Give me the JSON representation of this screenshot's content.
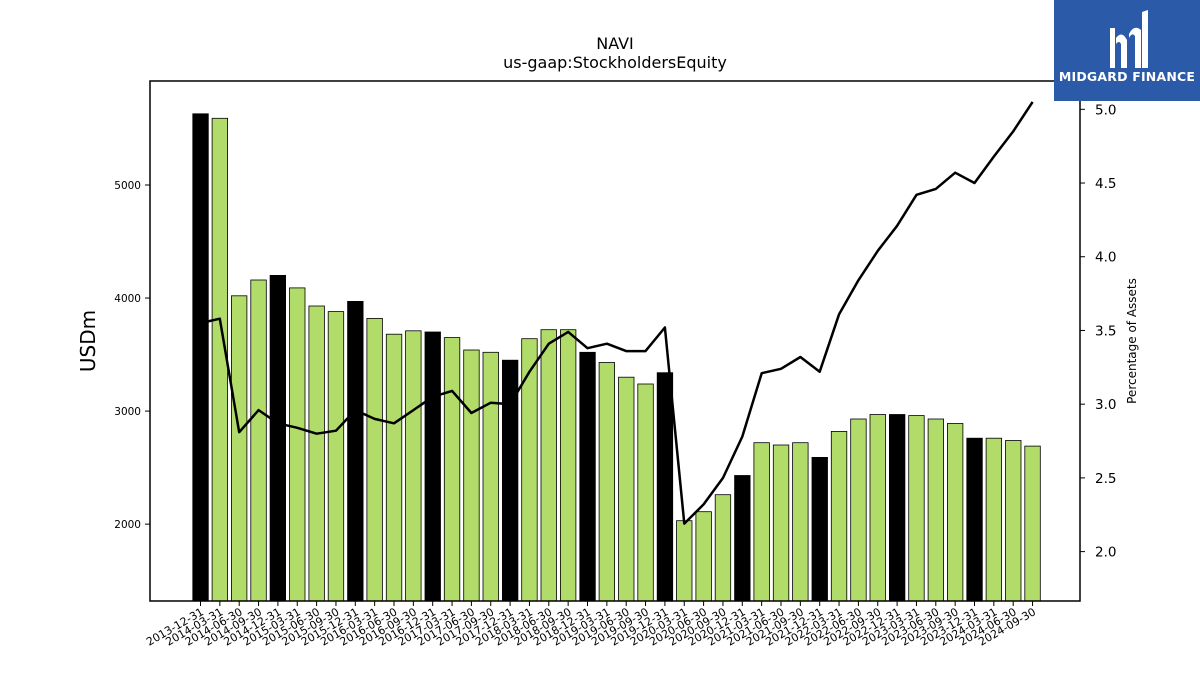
{
  "logo": {
    "text": "MIDGARD FINANCE",
    "background": "#2a5aa8"
  },
  "chart_data": {
    "type": "bar",
    "title": "NAVI",
    "subtitle": "us-gaap:StockholdersEquity",
    "ylabel": "USDm",
    "y2label": "Percentage of Assets",
    "ylim": [
      1320,
      5920
    ],
    "y2lim": [
      1.665,
      5.192
    ],
    "yticks": [
      2000,
      3000,
      4000,
      5000
    ],
    "y2ticks": [
      "2.0",
      "2.5",
      "3.0",
      "3.5",
      "4.0",
      "4.5",
      "5.0"
    ],
    "colors": {
      "annual": "#000000",
      "quarterly": "#b2dc6a",
      "line": "#000000"
    },
    "categories": [
      "2013-12-31",
      "2014-03-31",
      "2014-06-30",
      "2014-09-30",
      "2014-12-31",
      "2015-03-31",
      "2015-06-30",
      "2015-09-30",
      "2015-12-31",
      "2016-03-31",
      "2016-06-30",
      "2016-09-30",
      "2016-12-31",
      "2017-03-31",
      "2017-06-30",
      "2017-09-30",
      "2017-12-31",
      "2018-03-31",
      "2018-06-30",
      "2018-09-30",
      "2018-12-31",
      "2019-03-31",
      "2019-06-30",
      "2019-09-30",
      "2019-12-31",
      "2020-03-31",
      "2020-06-30",
      "2020-09-30",
      "2020-12-31",
      "2021-03-31",
      "2021-06-30",
      "2021-09-30",
      "2021-12-31",
      "2022-03-31",
      "2022-06-30",
      "2022-09-30",
      "2022-12-31",
      "2023-03-31",
      "2023-06-30",
      "2023-09-30",
      "2023-12-31",
      "2024-03-31",
      "2024-06-30",
      "2024-09-30"
    ],
    "series": [
      {
        "values": [
          5630,
          5590,
          4020,
          4160,
          4200,
          4090,
          3930,
          3880,
          3970,
          3820,
          3680,
          3710,
          3700,
          3650,
          3540,
          3520,
          3450,
          3640,
          3720,
          3720,
          3520,
          3430,
          3300,
          3240,
          3340,
          2030,
          2110,
          2260,
          2430,
          2720,
          2700,
          2720,
          2590,
          2820,
          2930,
          2970,
          2970,
          2960,
          2930,
          2890,
          2760,
          2760,
          2740,
          2690
        ],
        "annual_flags": [
          true,
          false,
          false,
          false,
          true,
          false,
          false,
          false,
          true,
          false,
          false,
          false,
          true,
          false,
          false,
          false,
          true,
          false,
          false,
          false,
          true,
          false,
          false,
          false,
          true,
          false,
          false,
          false,
          true,
          false,
          false,
          false,
          true,
          false,
          false,
          false,
          true,
          false,
          false,
          false,
          true,
          false,
          false,
          false
        ]
      },
      {
        "axis": "right",
        "type": "line",
        "values": [
          3.55,
          3.58,
          2.81,
          2.96,
          2.87,
          2.84,
          2.8,
          2.82,
          2.96,
          2.9,
          2.87,
          2.96,
          3.05,
          3.09,
          2.94,
          3.01,
          3.0,
          3.22,
          3.41,
          3.49,
          3.38,
          3.41,
          3.36,
          3.36,
          3.52,
          2.19,
          2.32,
          2.5,
          2.78,
          3.21,
          3.24,
          3.32,
          3.22,
          3.61,
          3.84,
          4.04,
          4.21,
          4.42,
          4.46,
          4.57,
          4.5,
          4.68,
          4.85,
          5.05
        ]
      }
    ]
  }
}
